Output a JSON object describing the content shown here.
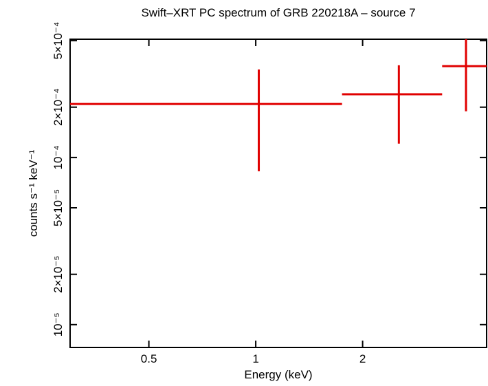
{
  "chart_data": {
    "type": "errorbar",
    "title": "Swift–XRT PC spectrum of GRB 220218A – source 7",
    "x_label": "Energy (keV)",
    "y_label": "counts s⁻¹ keV⁻¹",
    "log_x": true,
    "log_y": true,
    "xlim": [
      0.3,
      4.47
    ],
    "ylim": [
      7.3e-06,
      0.00051
    ],
    "xticks": [
      0.5,
      1,
      2
    ],
    "yticks": [
      {
        "value": 1e-05,
        "label": "10⁻⁵"
      },
      {
        "value": 2e-05,
        "label": "2×10⁻⁵"
      },
      {
        "value": 5e-05,
        "label": "5×10⁻⁵"
      },
      {
        "value": 0.0001,
        "label": "10⁻⁴"
      },
      {
        "value": 0.0002,
        "label": "2×10⁻⁴"
      },
      {
        "value": 0.0005,
        "label": "5×10⁻⁴"
      }
    ],
    "series": [
      {
        "color": "#e00000",
        "x": [
          1.02,
          2.53,
          3.91
        ],
        "x_low": [
          0.3,
          1.75,
          3.35
        ],
        "x_high": [
          1.75,
          3.35,
          4.47
        ],
        "values": [
          0.000209,
          0.000239,
          0.000352
        ],
        "y_low": [
          8.27e-05,
          0.000121,
          0.000189
        ],
        "y_high": [
          0.000336,
          0.000356,
          0.00052
        ]
      }
    ]
  }
}
